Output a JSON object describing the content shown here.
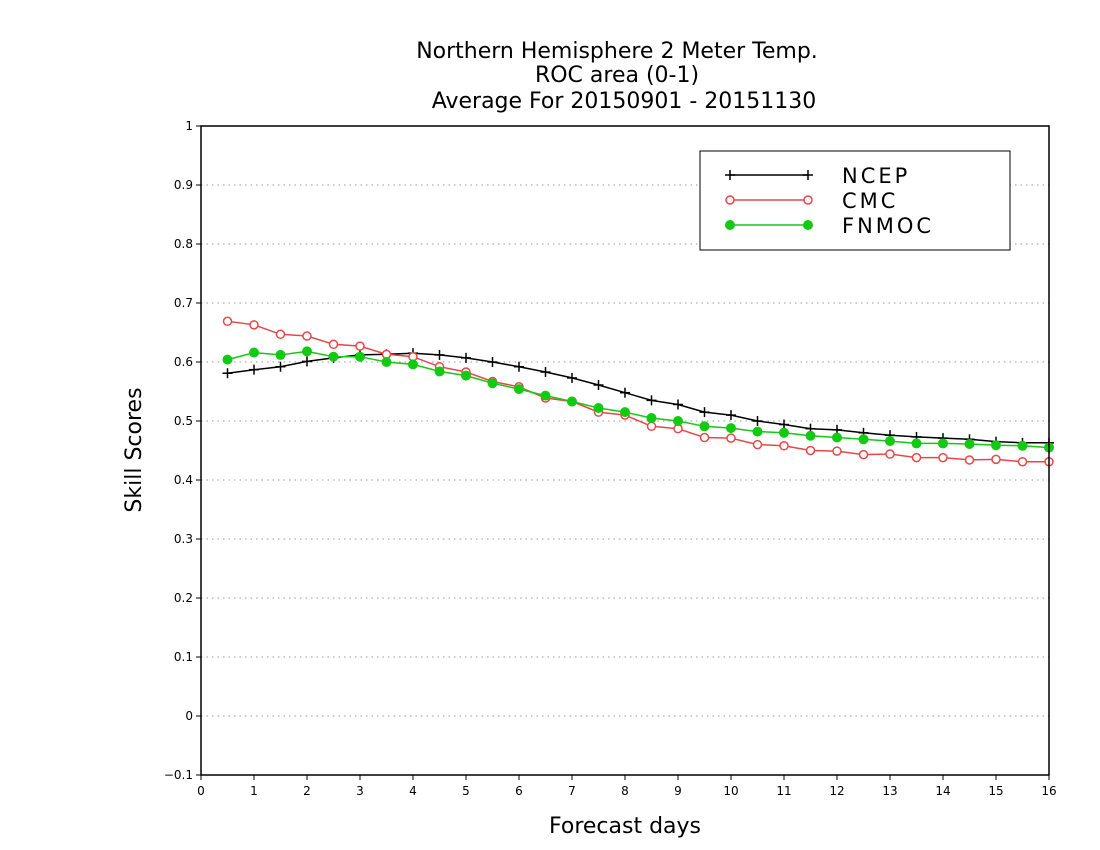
{
  "chart_data": {
    "type": "line",
    "title_lines": [
      "Northern Hemisphere 2 Meter Temp.",
      "ROC area (0-1)",
      "Average For 20150901 - 20151130"
    ],
    "xlabel": "Forecast days",
    "ylabel": "Skill Scores",
    "xlim": [
      0,
      16
    ],
    "ylim": [
      -0.1,
      1
    ],
    "x_ticks": [
      "0",
      "1",
      "2",
      "3",
      "4",
      "5",
      "6",
      "7",
      "8",
      "9",
      "10",
      "11",
      "12",
      "13",
      "14",
      "15",
      "16"
    ],
    "y_ticks": [
      "−0.1",
      "0",
      "0.1",
      "0.2",
      "0.3",
      "0.4",
      "0.5",
      "0.6",
      "0.7",
      "0.8",
      "0.9",
      "1"
    ],
    "grid": "horizontal dotted",
    "legend_position": "top-right",
    "x": [
      0.5,
      1,
      1.5,
      2,
      2.5,
      3,
      3.5,
      4,
      4.5,
      5,
      5.5,
      6,
      6.5,
      7,
      7.5,
      8,
      8.5,
      9,
      9.5,
      10,
      10.5,
      11,
      11.5,
      12,
      12.5,
      13,
      13.5,
      14,
      14.5,
      15,
      15.5,
      16
    ],
    "series": [
      {
        "name": "NCEP",
        "color": "#000000",
        "marker": "plus",
        "values": [
          0.581,
          0.587,
          0.592,
          0.601,
          0.607,
          0.612,
          0.613,
          0.615,
          0.612,
          0.607,
          0.6,
          0.592,
          0.583,
          0.573,
          0.561,
          0.548,
          0.535,
          0.528,
          0.515,
          0.51,
          0.5,
          0.494,
          0.487,
          0.485,
          0.48,
          0.476,
          0.473,
          0.471,
          0.469,
          0.465,
          0.463,
          0.463
        ]
      },
      {
        "name": "CMC",
        "color": "#e8474a",
        "marker": "open-circle",
        "values": [
          0.669,
          0.663,
          0.647,
          0.644,
          0.63,
          0.627,
          0.613,
          0.609,
          0.592,
          0.583,
          0.567,
          0.558,
          0.539,
          0.533,
          0.515,
          0.51,
          0.491,
          0.487,
          0.472,
          0.471,
          0.46,
          0.458,
          0.45,
          0.449,
          0.443,
          0.444,
          0.438,
          0.438,
          0.434,
          0.435,
          0.431,
          0.431
        ]
      },
      {
        "name": "FNMOC",
        "color": "#14c914",
        "marker": "filled-circle",
        "values": [
          0.604,
          0.616,
          0.612,
          0.618,
          0.609,
          0.609,
          0.6,
          0.596,
          0.584,
          0.577,
          0.564,
          0.554,
          0.543,
          0.533,
          0.522,
          0.515,
          0.505,
          0.5,
          0.491,
          0.488,
          0.482,
          0.48,
          0.475,
          0.472,
          0.469,
          0.466,
          0.462,
          0.462,
          0.461,
          0.459,
          0.458,
          0.455
        ]
      }
    ]
  }
}
